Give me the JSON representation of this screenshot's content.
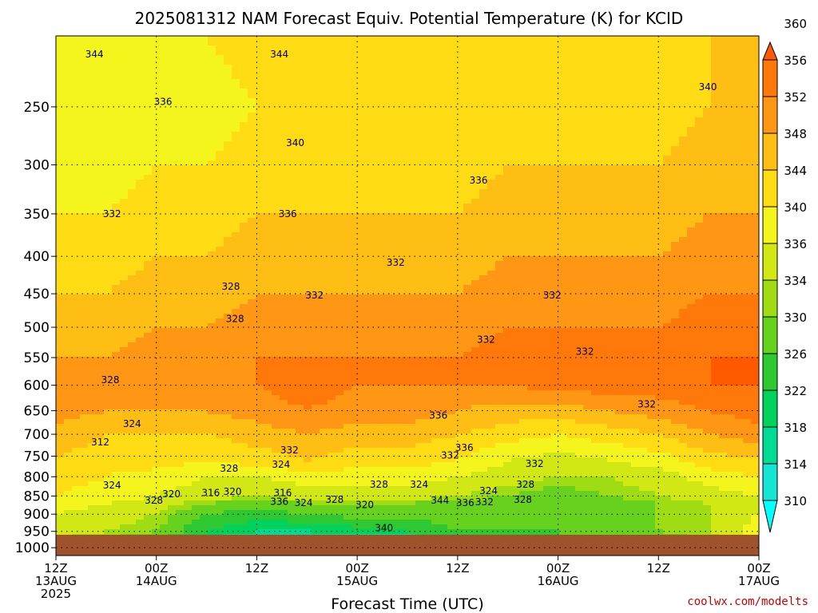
{
  "chart_data": {
    "type": "heatmap",
    "title": "2025081312 NAM Forecast Equiv. Potential Temperature (K) for KCID",
    "xlabel": "Forecast Time (UTC)",
    "ylabel": "",
    "credit": "coolwx.com/modelts",
    "y_axis": {
      "scale": "log",
      "range": [
        1025,
        200
      ],
      "ticks": [
        250,
        300,
        350,
        400,
        450,
        500,
        550,
        600,
        650,
        700,
        750,
        800,
        850,
        900,
        950,
        1000
      ]
    },
    "x_axis": {
      "range_hours": [
        0,
        84
      ],
      "ticks": [
        {
          "hour": 0,
          "l1": "12Z",
          "l2": "13AUG",
          "l3": "2025"
        },
        {
          "hour": 12,
          "l1": "00Z",
          "l2": "14AUG",
          "l3": ""
        },
        {
          "hour": 24,
          "l1": "12Z",
          "l2": "",
          "l3": ""
        },
        {
          "hour": 36,
          "l1": "00Z",
          "l2": "15AUG",
          "l3": ""
        },
        {
          "hour": 48,
          "l1": "12Z",
          "l2": "",
          "l3": ""
        },
        {
          "hour": 60,
          "l1": "00Z",
          "l2": "16AUG",
          "l3": ""
        },
        {
          "hour": 72,
          "l1": "12Z",
          "l2": "",
          "l3": ""
        },
        {
          "hour": 84,
          "l1": "00Z",
          "l2": "17AUG",
          "l3": ""
        }
      ]
    },
    "colorbar": {
      "levels": [
        310,
        314,
        318,
        322,
        326,
        330,
        334,
        336,
        340,
        344,
        348,
        352,
        356,
        360
      ],
      "colors": [
        "#00ffff",
        "#16e5d6",
        "#00dc96",
        "#00d25c",
        "#2ec832",
        "#66d21e",
        "#a0dc14",
        "#d2e814",
        "#f5f51e",
        "#ffdc14",
        "#ffbe14",
        "#ff9614",
        "#ff780a",
        "#ff5a00"
      ]
    },
    "terrain_color": "#a0522d",
    "profile_levels_hpa": [
      1000,
      975,
      950,
      900,
      870,
      850,
      800,
      760,
      700,
      650,
      600,
      550,
      500,
      450,
      400,
      350,
      300,
      250,
      200
    ],
    "profile_hours": [
      0,
      6,
      12,
      18,
      24,
      30,
      36,
      42,
      48,
      54,
      60,
      66,
      72,
      78,
      84
    ],
    "theta_e_K": [
      [
        336,
        334,
        330,
        322,
        318,
        316,
        314,
        318,
        324,
        326,
        330,
        330,
        332,
        334,
        342
      ],
      [
        336,
        334,
        330,
        322,
        318,
        316,
        316,
        318,
        324,
        326,
        330,
        330,
        332,
        334,
        342
      ],
      [
        338,
        336,
        334,
        326,
        322,
        322,
        324,
        326,
        330,
        330,
        330,
        332,
        334,
        336,
        342
      ],
      [
        340,
        338,
        336,
        330,
        328,
        330,
        332,
        332,
        332,
        330,
        330,
        332,
        334,
        336,
        340
      ],
      [
        342,
        340,
        338,
        334,
        332,
        334,
        334,
        334,
        332,
        332,
        330,
        332,
        334,
        336,
        340
      ],
      [
        344,
        342,
        340,
        338,
        336,
        338,
        338,
        338,
        336,
        334,
        332,
        334,
        336,
        338,
        340
      ],
      [
        346,
        344,
        342,
        340,
        340,
        342,
        342,
        342,
        340,
        338,
        336,
        336,
        338,
        342,
        344
      ],
      [
        348,
        346,
        346,
        344,
        346,
        348,
        346,
        346,
        344,
        340,
        338,
        340,
        342,
        346,
        348
      ],
      [
        350,
        348,
        348,
        348,
        350,
        352,
        350,
        350,
        348,
        346,
        344,
        346,
        348,
        352,
        354
      ],
      [
        354,
        352,
        352,
        352,
        354,
        356,
        354,
        354,
        352,
        350,
        350,
        352,
        354,
        356,
        358
      ],
      [
        354,
        352,
        354,
        354,
        356,
        358,
        356,
        356,
        356,
        356,
        358,
        358,
        358,
        360,
        360
      ],
      [
        352,
        352,
        354,
        354,
        356,
        356,
        356,
        356,
        356,
        358,
        358,
        358,
        358,
        360,
        360
      ],
      [
        350,
        350,
        352,
        352,
        354,
        354,
        354,
        354,
        354,
        356,
        356,
        356,
        356,
        358,
        358
      ],
      [
        348,
        348,
        350,
        350,
        352,
        352,
        352,
        352,
        352,
        354,
        354,
        354,
        354,
        356,
        356
      ],
      [
        346,
        346,
        348,
        348,
        350,
        350,
        350,
        350,
        350,
        352,
        352,
        352,
        352,
        354,
        354
      ],
      [
        344,
        344,
        346,
        346,
        348,
        348,
        348,
        348,
        348,
        350,
        350,
        350,
        350,
        352,
        352
      ],
      [
        342,
        342,
        344,
        344,
        346,
        346,
        346,
        346,
        346,
        348,
        348,
        348,
        348,
        350,
        350
      ],
      [
        340,
        340,
        342,
        342,
        344,
        344,
        344,
        344,
        344,
        346,
        346,
        346,
        346,
        348,
        348
      ],
      [
        344,
        344,
        344,
        344,
        346,
        346,
        346,
        346,
        346,
        346,
        346,
        346,
        346,
        348,
        348
      ]
    ],
    "contour_labels": [
      {
        "text": "344",
        "hour": 4.6,
        "p": 212
      },
      {
        "text": "344",
        "hour": 26.7,
        "p": 212
      },
      {
        "text": "336",
        "hour": 12.8,
        "p": 246
      },
      {
        "text": "340",
        "hour": 77.9,
        "p": 235
      },
      {
        "text": "340",
        "hour": 28.6,
        "p": 280
      },
      {
        "text": "336",
        "hour": 50.5,
        "p": 315
      },
      {
        "text": "332",
        "hour": 6.7,
        "p": 350
      },
      {
        "text": "336",
        "hour": 27.7,
        "p": 350
      },
      {
        "text": "332",
        "hour": 40.6,
        "p": 408
      },
      {
        "text": "328",
        "hour": 20.9,
        "p": 440
      },
      {
        "text": "332",
        "hour": 30.9,
        "p": 452
      },
      {
        "text": "332",
        "hour": 59.3,
        "p": 452
      },
      {
        "text": "328",
        "hour": 21.4,
        "p": 487
      },
      {
        "text": "332",
        "hour": 51.4,
        "p": 520
      },
      {
        "text": "332",
        "hour": 63.2,
        "p": 540
      },
      {
        "text": "328",
        "hour": 6.5,
        "p": 590
      },
      {
        "text": "332",
        "hour": 70.6,
        "p": 637
      },
      {
        "text": "336",
        "hour": 45.7,
        "p": 660
      },
      {
        "text": "324",
        "hour": 9.1,
        "p": 677
      },
      {
        "text": "312",
        "hour": 5.3,
        "p": 718
      },
      {
        "text": "336",
        "hour": 48.8,
        "p": 730
      },
      {
        "text": "332",
        "hour": 27.9,
        "p": 736
      },
      {
        "text": "332",
        "hour": 47.1,
        "p": 748
      },
      {
        "text": "332",
        "hour": 57.2,
        "p": 768
      },
      {
        "text": "324",
        "hour": 26.9,
        "p": 770
      },
      {
        "text": "328",
        "hour": 20.7,
        "p": 780
      },
      {
        "text": "328",
        "hour": 38.6,
        "p": 820
      },
      {
        "text": "324",
        "hour": 43.4,
        "p": 820
      },
      {
        "text": "324",
        "hour": 51.7,
        "p": 836
      },
      {
        "text": "324",
        "hour": 6.7,
        "p": 822
      },
      {
        "text": "320",
        "hour": 13.8,
        "p": 845
      },
      {
        "text": "316",
        "hour": 18.5,
        "p": 842
      },
      {
        "text": "320",
        "hour": 21.1,
        "p": 838
      },
      {
        "text": "316",
        "hour": 27.1,
        "p": 842
      },
      {
        "text": "328",
        "hour": 11.7,
        "p": 862
      },
      {
        "text": "336",
        "hour": 26.7,
        "p": 865
      },
      {
        "text": "324",
        "hour": 29.6,
        "p": 868
      },
      {
        "text": "328",
        "hour": 33.3,
        "p": 860
      },
      {
        "text": "320",
        "hour": 36.9,
        "p": 874
      },
      {
        "text": "344",
        "hour": 45.9,
        "p": 862
      },
      {
        "text": "336",
        "hour": 48.9,
        "p": 868
      },
      {
        "text": "332",
        "hour": 51.2,
        "p": 866
      },
      {
        "text": "328",
        "hour": 55.8,
        "p": 860
      },
      {
        "text": "328",
        "hour": 56.1,
        "p": 820
      },
      {
        "text": "340",
        "hour": 39.2,
        "p": 940
      }
    ]
  }
}
